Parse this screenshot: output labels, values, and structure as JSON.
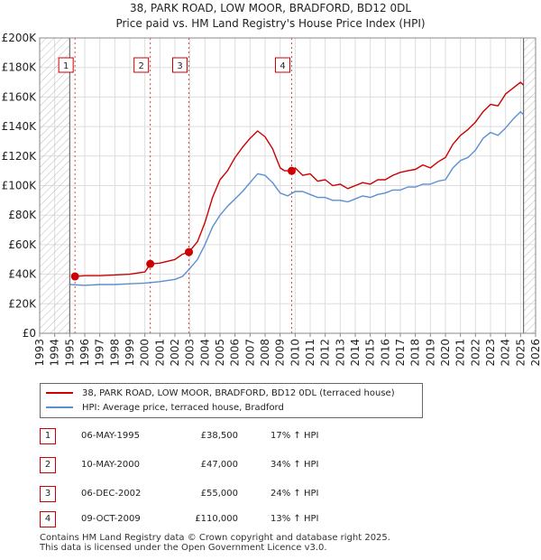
{
  "chart_data": {
    "type": "line",
    "title": "38, PARK ROAD, LOW MOOR, BRADFORD, BD12 0DL",
    "subtitle": "Price paid vs. HM Land Registry's House Price Index (HPI)",
    "xlim": [
      1993,
      2026
    ],
    "ylim": [
      0,
      200000
    ],
    "x_ticks": [
      "1993",
      "1994",
      "1995",
      "1996",
      "1997",
      "1998",
      "1999",
      "2000",
      "2001",
      "2002",
      "2003",
      "2004",
      "2005",
      "2006",
      "2007",
      "2008",
      "2009",
      "2010",
      "2011",
      "2012",
      "2013",
      "2014",
      "2015",
      "2016",
      "2017",
      "2018",
      "2019",
      "2020",
      "2021",
      "2022",
      "2023",
      "2024",
      "2025",
      "2026"
    ],
    "y_ticks": [
      {
        "value": 0,
        "label": "£0"
      },
      {
        "value": 20000,
        "label": "£20K"
      },
      {
        "value": 40000,
        "label": "£40K"
      },
      {
        "value": 60000,
        "label": "£60K"
      },
      {
        "value": 80000,
        "label": "£80K"
      },
      {
        "value": 100000,
        "label": "£100K"
      },
      {
        "value": 120000,
        "label": "£120K"
      },
      {
        "value": 140000,
        "label": "£140K"
      },
      {
        "value": 160000,
        "label": "£160K"
      },
      {
        "value": 180000,
        "label": "£180K"
      },
      {
        "value": 200000,
        "label": "£200K"
      }
    ],
    "hatched_before": 1995.0,
    "hatched_after": 2025.2,
    "series": [
      {
        "name": "38, PARK ROAD, LOW MOOR, BRADFORD, BD12 0DL (terraced house)",
        "color": "#cc0000",
        "points": [
          [
            1995.35,
            38500
          ],
          [
            1996,
            39000
          ],
          [
            1997,
            39000
          ],
          [
            1998,
            39500
          ],
          [
            1999,
            40000
          ],
          [
            2000.0,
            41500
          ],
          [
            2000.36,
            47000
          ],
          [
            2001,
            47500
          ],
          [
            2002,
            50000
          ],
          [
            2002.5,
            53500
          ],
          [
            2002.93,
            55000
          ],
          [
            2003.5,
            62000
          ],
          [
            2004,
            75000
          ],
          [
            2004.5,
            92000
          ],
          [
            2005,
            104000
          ],
          [
            2005.5,
            110000
          ],
          [
            2006,
            119000
          ],
          [
            2006.5,
            126000
          ],
          [
            2007,
            132000
          ],
          [
            2007.5,
            137000
          ],
          [
            2008,
            133000
          ],
          [
            2008.5,
            125000
          ],
          [
            2009,
            112000
          ],
          [
            2009.3,
            110000
          ],
          [
            2009.77,
            110000
          ],
          [
            2010,
            112000
          ],
          [
            2010.5,
            107000
          ],
          [
            2011,
            108000
          ],
          [
            2011.5,
            103000
          ],
          [
            2012,
            104000
          ],
          [
            2012.5,
            100000
          ],
          [
            2013,
            101000
          ],
          [
            2013.5,
            98000
          ],
          [
            2014,
            100000
          ],
          [
            2014.5,
            102000
          ],
          [
            2015,
            101000
          ],
          [
            2015.5,
            104000
          ],
          [
            2016,
            104000
          ],
          [
            2016.5,
            107000
          ],
          [
            2017,
            109000
          ],
          [
            2017.5,
            110000
          ],
          [
            2018,
            111000
          ],
          [
            2018.5,
            114000
          ],
          [
            2019,
            112000
          ],
          [
            2019.5,
            116000
          ],
          [
            2020,
            119000
          ],
          [
            2020.5,
            128000
          ],
          [
            2021,
            134000
          ],
          [
            2021.5,
            138000
          ],
          [
            2022,
            143000
          ],
          [
            2022.5,
            150000
          ],
          [
            2023,
            155000
          ],
          [
            2023.5,
            154000
          ],
          [
            2024,
            162000
          ],
          [
            2024.5,
            166000
          ],
          [
            2025,
            170000
          ],
          [
            2025.2,
            168000
          ]
        ]
      },
      {
        "name": "HPI: Average price, terraced house, Bradford",
        "color": "#5b8fd0",
        "points": [
          [
            1995.0,
            33000
          ],
          [
            1996,
            32500
          ],
          [
            1997,
            33000
          ],
          [
            1998,
            33000
          ],
          [
            1999,
            33500
          ],
          [
            2000,
            34000
          ],
          [
            2001,
            35000
          ],
          [
            2002,
            36500
          ],
          [
            2002.5,
            38500
          ],
          [
            2003,
            44000
          ],
          [
            2003.5,
            50000
          ],
          [
            2004,
            60000
          ],
          [
            2004.5,
            72000
          ],
          [
            2005,
            80000
          ],
          [
            2005.5,
            86000
          ],
          [
            2006,
            91000
          ],
          [
            2006.5,
            96000
          ],
          [
            2007,
            102000
          ],
          [
            2007.5,
            108000
          ],
          [
            2008,
            107000
          ],
          [
            2008.5,
            102000
          ],
          [
            2009,
            95000
          ],
          [
            2009.5,
            93000
          ],
          [
            2010,
            96000
          ],
          [
            2010.5,
            96000
          ],
          [
            2011,
            94000
          ],
          [
            2011.5,
            92000
          ],
          [
            2012,
            92000
          ],
          [
            2012.5,
            90000
          ],
          [
            2013,
            90000
          ],
          [
            2013.5,
            89000
          ],
          [
            2014,
            91000
          ],
          [
            2014.5,
            93000
          ],
          [
            2015,
            92000
          ],
          [
            2015.5,
            94000
          ],
          [
            2016,
            95000
          ],
          [
            2016.5,
            97000
          ],
          [
            2017,
            97000
          ],
          [
            2017.5,
            99000
          ],
          [
            2018,
            99000
          ],
          [
            2018.5,
            101000
          ],
          [
            2019,
            101000
          ],
          [
            2019.5,
            103000
          ],
          [
            2020,
            104000
          ],
          [
            2020.5,
            112000
          ],
          [
            2021,
            117000
          ],
          [
            2021.5,
            119000
          ],
          [
            2022,
            124000
          ],
          [
            2022.5,
            132000
          ],
          [
            2023,
            136000
          ],
          [
            2023.5,
            134000
          ],
          [
            2024,
            139000
          ],
          [
            2024.5,
            145000
          ],
          [
            2025,
            150000
          ],
          [
            2025.2,
            148000
          ]
        ]
      }
    ],
    "sales": [
      {
        "num": "1",
        "x": 1995.35,
        "price": 38500,
        "date": "06-MAY-1995",
        "price_label": "£38,500",
        "hpi": "17% ↑ HPI"
      },
      {
        "num": "2",
        "x": 2000.36,
        "price": 47000,
        "date": "10-MAY-2000",
        "price_label": "£47,000",
        "hpi": "34% ↑ HPI"
      },
      {
        "num": "3",
        "x": 2002.93,
        "price": 55000,
        "date": "06-DEC-2002",
        "price_label": "£55,000",
        "hpi": "24% ↑ HPI"
      },
      {
        "num": "4",
        "x": 2009.77,
        "price": 110000,
        "date": "09-OCT-2009",
        "price_label": "£110,000",
        "hpi": "13% ↑ HPI"
      }
    ],
    "legend": [
      {
        "label": "38, PARK ROAD, LOW MOOR, BRADFORD, BD12 0DL (terraced house)",
        "color": "#cc0000"
      },
      {
        "label": "HPI: Average price, terraced house, Bradford",
        "color": "#5b8fd0"
      }
    ]
  },
  "footer": {
    "line1": "Contains HM Land Registry data © Crown copyright and database right 2025.",
    "line2": "This data is licensed under the Open Government Licence v3.0."
  }
}
